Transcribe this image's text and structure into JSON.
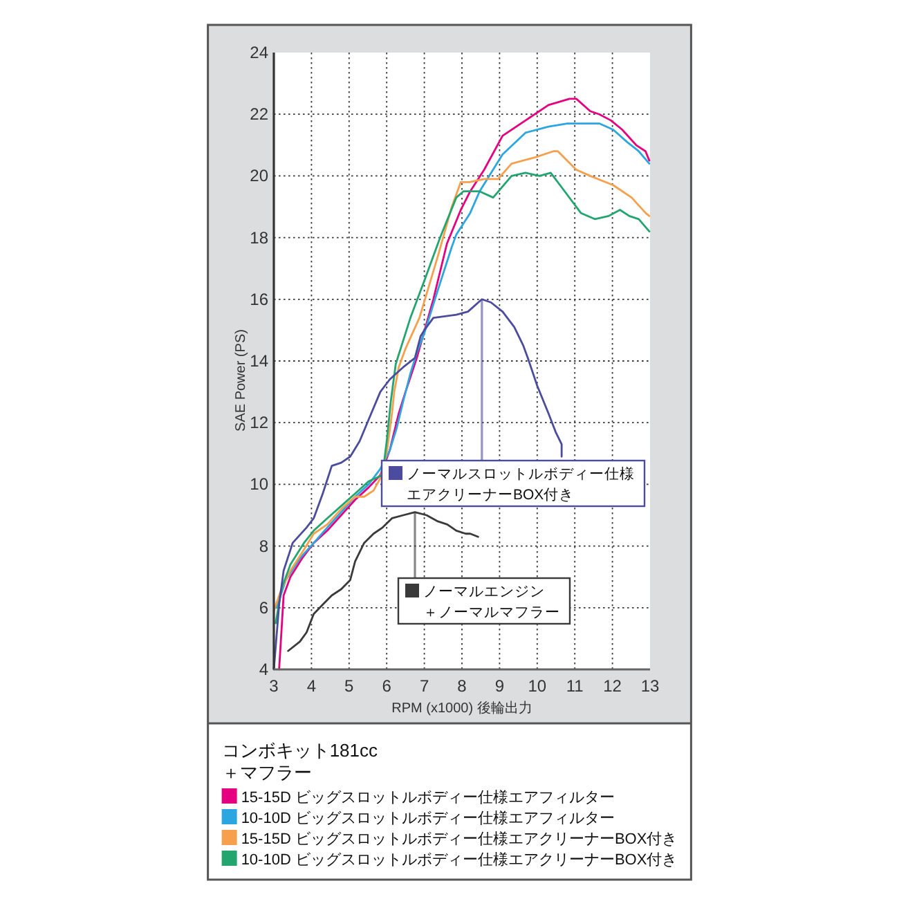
{
  "chart_data": {
    "type": "line",
    "title": "コンボキット181cc",
    "subtitle": "＋マフラー",
    "xlabel": "RPM (x1000) 後輪出力",
    "ylabel": "SAE Power (PS)",
    "xlim": [
      3,
      13
    ],
    "ylim": [
      4,
      24
    ],
    "xticks": [
      3,
      4,
      5,
      6,
      7,
      8,
      9,
      10,
      11,
      12,
      13
    ],
    "yticks": [
      4,
      6,
      8,
      10,
      12,
      14,
      16,
      18,
      20,
      22,
      24
    ],
    "grid": true,
    "legend": "bottom",
    "line_style": "solid",
    "series": [
      {
        "name": "15-15D ビッグスロットルボディー仕様エアフィルター",
        "color": "#e4007f",
        "x": [
          3.14,
          3.2,
          3.26,
          3.44,
          3.75,
          4.06,
          4.42,
          4.79,
          5.16,
          5.52,
          5.83,
          6.08,
          6.32,
          6.5,
          6.8,
          7.24,
          7.6,
          7.97,
          8.22,
          8.59,
          9.08,
          9.69,
          10.3,
          10.86,
          11.04,
          11.41,
          11.65,
          11.96,
          12.26,
          12.63,
          12.88,
          12.98
        ],
        "values": [
          4.0,
          5.2,
          6.4,
          7.0,
          7.6,
          8.1,
          8.5,
          9.0,
          9.5,
          9.9,
          10.3,
          11.1,
          12.3,
          13.0,
          14.1,
          16.0,
          17.8,
          18.9,
          19.5,
          20.2,
          21.3,
          21.8,
          22.3,
          22.5,
          22.5,
          22.1,
          22.0,
          21.8,
          21.5,
          21.0,
          20.8,
          20.5
        ]
      },
      {
        "name": "10-10D ビッグスロットルボディー仕様エアフィルター",
        "color": "#2ca6e0",
        "x": [
          3.07,
          3.32,
          3.69,
          4.06,
          4.42,
          4.79,
          5.16,
          5.52,
          5.83,
          6.08,
          6.26,
          6.44,
          6.63,
          6.81,
          7.0,
          7.36,
          7.73,
          7.85,
          8.22,
          8.47,
          9.08,
          9.69,
          10.3,
          10.8,
          11.16,
          11.65,
          12.02,
          12.39,
          12.7,
          12.98
        ],
        "values": [
          6.0,
          6.9,
          7.6,
          8.1,
          8.6,
          9.1,
          9.6,
          10.0,
          10.5,
          11.1,
          11.8,
          12.7,
          13.6,
          14.3,
          14.9,
          16.3,
          17.7,
          18.1,
          18.8,
          19.5,
          20.7,
          21.4,
          21.6,
          21.7,
          21.7,
          21.7,
          21.5,
          21.1,
          20.8,
          20.4
        ]
      },
      {
        "name": "15-15D ビッグスロットルボディー仕様エアクリーナーBOX付き",
        "color": "#f6a04d",
        "x": [
          3.0,
          3.2,
          3.44,
          3.81,
          4.06,
          4.42,
          4.79,
          5.16,
          5.4,
          5.65,
          5.83,
          6.01,
          6.14,
          6.2,
          6.32,
          6.5,
          6.87,
          7.36,
          7.73,
          7.97,
          8.2,
          8.59,
          8.96,
          9.32,
          9.94,
          10.43,
          10.55,
          11.04,
          11.41,
          12.02,
          12.51,
          12.88,
          12.98
        ],
        "values": [
          5.9,
          6.6,
          7.2,
          7.9,
          8.4,
          8.7,
          9.2,
          9.6,
          9.6,
          9.8,
          10.2,
          11.1,
          12.3,
          13.0,
          13.8,
          14.4,
          15.4,
          17.4,
          19.0,
          19.8,
          19.8,
          19.9,
          19.9,
          20.4,
          20.6,
          20.8,
          20.8,
          20.2,
          20.0,
          19.7,
          19.3,
          18.8,
          18.7
        ]
      },
      {
        "name": "10-10D ビッグスロットルボディー仕様エアクリーナーBOX付き",
        "color": "#22a56f",
        "x": [
          3.05,
          3.2,
          3.44,
          3.8,
          4.06,
          4.42,
          4.79,
          5.16,
          5.52,
          5.89,
          6.01,
          6.11,
          6.24,
          6.63,
          7.0,
          7.42,
          7.85,
          8.04,
          8.47,
          8.83,
          9.32,
          9.69,
          10.06,
          10.36,
          10.67,
          11.16,
          11.53,
          11.9,
          12.2,
          12.45,
          12.7,
          12.98
        ],
        "values": [
          5.5,
          6.6,
          7.4,
          8.1,
          8.5,
          8.9,
          9.3,
          9.7,
          10.1,
          10.3,
          11.5,
          12.7,
          13.9,
          15.4,
          16.6,
          18.0,
          19.3,
          19.5,
          19.5,
          19.3,
          20.0,
          20.1,
          20.0,
          20.1,
          19.6,
          18.8,
          18.6,
          18.7,
          18.9,
          18.7,
          18.6,
          18.2
        ]
      },
      {
        "name": "ノーマルスロットルボディー仕様エアクリーナーBOX付き",
        "color": "#4b4c9e",
        "x": [
          3.0,
          3.14,
          3.26,
          3.5,
          3.87,
          4.06,
          4.3,
          4.54,
          4.79,
          5.03,
          5.28,
          5.52,
          5.83,
          6.08,
          6.26,
          6.44,
          6.75,
          6.9,
          7.0,
          7.24,
          7.85,
          8.16,
          8.53,
          8.77,
          9.08,
          9.39,
          9.63,
          9.75,
          10.0,
          10.3,
          10.49,
          10.65,
          10.65
        ],
        "values": [
          4.0,
          6.1,
          7.2,
          8.1,
          8.6,
          8.9,
          9.7,
          10.6,
          10.7,
          10.9,
          11.4,
          12.1,
          13.0,
          13.4,
          13.6,
          13.8,
          14.1,
          14.8,
          15.0,
          15.4,
          15.5,
          15.6,
          16.0,
          15.9,
          15.6,
          15.1,
          14.5,
          14.1,
          13.2,
          12.3,
          11.7,
          11.3,
          10.9
        ]
      },
      {
        "name": "ノーマルエンジン＋ノーマルマフラー",
        "color": "#3a3a3a",
        "x": [
          3.38,
          3.69,
          3.87,
          4.06,
          4.3,
          4.54,
          4.79,
          5.03,
          5.16,
          5.4,
          5.65,
          5.89,
          6.14,
          6.44,
          6.75,
          7.06,
          7.36,
          7.61,
          7.85,
          8.1,
          8.22,
          8.43
        ],
        "values": [
          4.6,
          4.9,
          5.2,
          5.8,
          6.1,
          6.4,
          6.6,
          6.9,
          7.5,
          8.1,
          8.4,
          8.6,
          8.9,
          9.0,
          9.1,
          9.0,
          8.8,
          8.7,
          8.5,
          8.4,
          8.4,
          8.3
        ]
      }
    ]
  }
}
